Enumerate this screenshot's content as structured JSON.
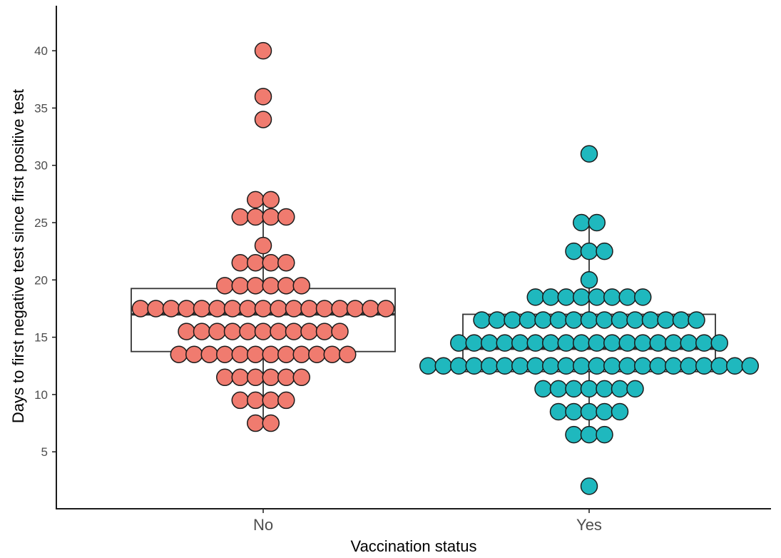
{
  "chart_data": {
    "type": "scatter",
    "subtype": "boxplot-with-dotplot",
    "xlabel": "Vaccination status",
    "ylabel": "Days to first negative test since first positive test",
    "categories": [
      "No",
      "Yes"
    ],
    "ylim": [
      0,
      43
    ],
    "yticks": [
      5,
      10,
      15,
      20,
      25,
      30,
      35,
      40
    ],
    "grid": false,
    "legend": "none",
    "colors": {
      "No": "#F07B6F",
      "Yes": "#1FB8BE",
      "outline": "#1a1a1a",
      "box": "#333333"
    },
    "boxplot": [
      {
        "category": "No",
        "q1": 13.75,
        "median": 17.0,
        "q3": 19.25,
        "whisker_low": 7.5,
        "whisker_high": 27.0
      },
      {
        "category": "Yes",
        "q1": 12.0,
        "median": 14.0,
        "q3": 17.0,
        "whisker_low": 6.5,
        "whisker_high": 25.0
      }
    ],
    "series": [
      {
        "name": "No",
        "points": [
          {
            "y": 40,
            "count": 1
          },
          {
            "y": 36,
            "count": 1
          },
          {
            "y": 34,
            "count": 1
          },
          {
            "y": 27,
            "count": 2
          },
          {
            "y": 25.5,
            "count": 4
          },
          {
            "y": 23,
            "count": 1
          },
          {
            "y": 21.5,
            "count": 4
          },
          {
            "y": 19.5,
            "count": 6
          },
          {
            "y": 17.5,
            "count": 17
          },
          {
            "y": 15.5,
            "count": 11
          },
          {
            "y": 13.5,
            "count": 12
          },
          {
            "y": 11.5,
            "count": 6
          },
          {
            "y": 9.5,
            "count": 4
          },
          {
            "y": 7.5,
            "count": 2
          }
        ]
      },
      {
        "name": "Yes",
        "points": [
          {
            "y": 31,
            "count": 1
          },
          {
            "y": 25,
            "count": 2
          },
          {
            "y": 22.5,
            "count": 3
          },
          {
            "y": 20,
            "count": 1
          },
          {
            "y": 18.5,
            "count": 8
          },
          {
            "y": 16.5,
            "count": 15
          },
          {
            "y": 14.5,
            "count": 18
          },
          {
            "y": 12.5,
            "count": 22
          },
          {
            "y": 10.5,
            "count": 7
          },
          {
            "y": 8.5,
            "count": 5
          },
          {
            "y": 6.5,
            "count": 3
          },
          {
            "y": 2,
            "count": 1
          }
        ]
      }
    ]
  }
}
